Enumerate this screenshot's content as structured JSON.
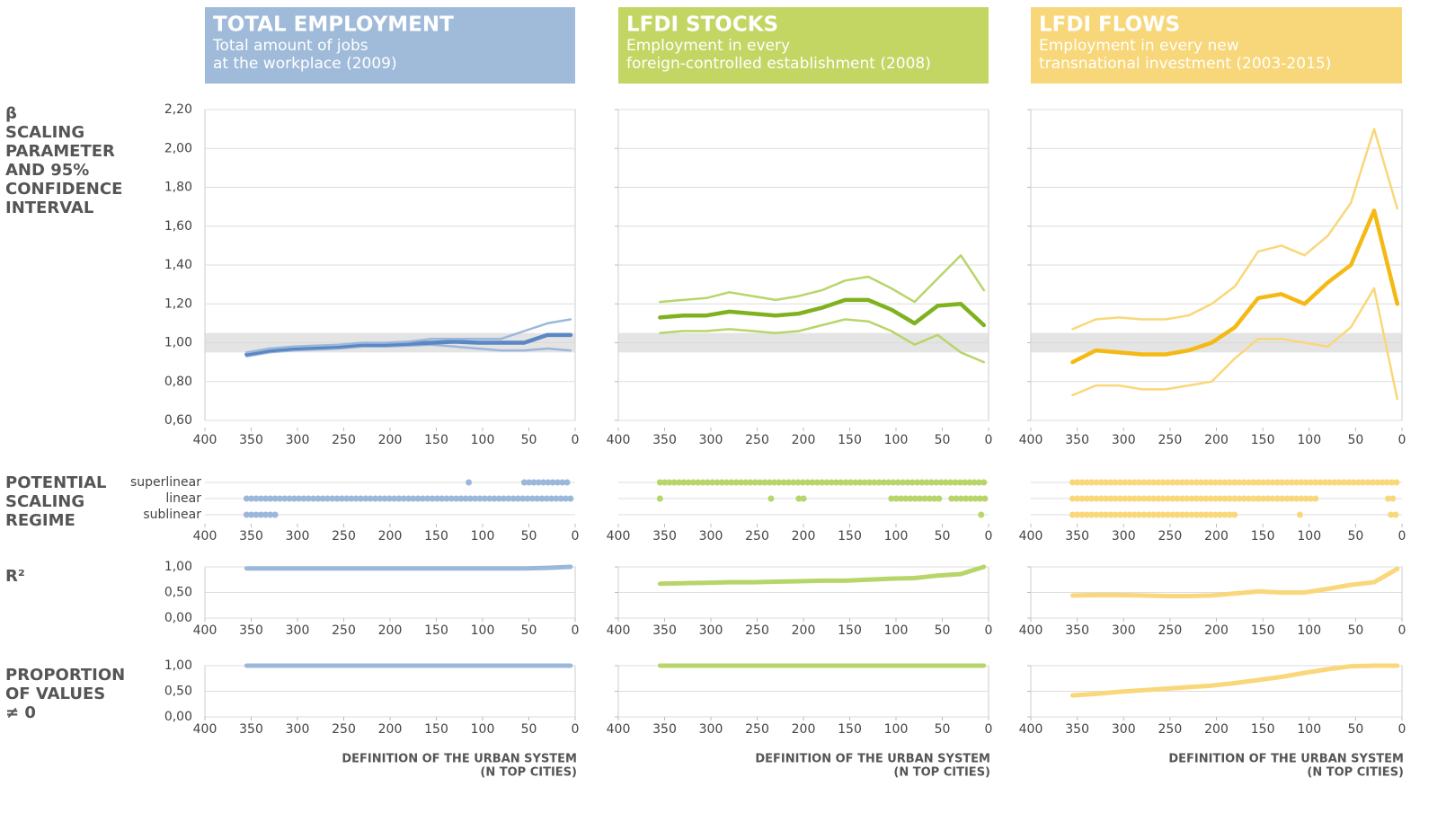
{
  "headers": [
    {
      "title": "TOTAL EMPLOYMENT",
      "subtitle": [
        "Total amount of jobs",
        "at the workplace (2009)"
      ],
      "color": "#9fbbd9",
      "x_title": [
        "DEFINITION OF THE URBAN SYSTEM",
        "(N TOP CITIES)"
      ]
    },
    {
      "title": "LFDI STOCKS",
      "subtitle": [
        "Employment in every",
        "foreign-controlled establishment (2008)"
      ],
      "color": "#c3d664",
      "x_title": [
        "DEFINITION OF THE URBAN SYSTEM",
        "(N TOP CITIES)"
      ]
    },
    {
      "title": "LFDI FLOWS",
      "subtitle": [
        "Employment in every new",
        "transnational investment (2003-2015)"
      ],
      "color": "#f7d77a",
      "x_title": [
        "DEFINITION OF THE URBAN SYSTEM",
        "(N TOP CITIES)"
      ]
    }
  ],
  "row_labels": [
    [
      "β",
      "SCALING",
      "PARAMETER",
      "AND 95%",
      "CONFIDENCE",
      "INTERVAL"
    ],
    [
      "POTENTIAL",
      "SCALING",
      "REGIME"
    ],
    [
      "R²"
    ],
    [
      "PROPORTION",
      "OF VALUES",
      "≠ 0"
    ]
  ],
  "chart_data": [
    {
      "type": "line",
      "x": [
        355,
        330,
        305,
        280,
        255,
        230,
        205,
        180,
        155,
        130,
        105,
        80,
        55,
        30,
        5
      ],
      "xlim": [
        400,
        0
      ],
      "xticks": [
        400,
        350,
        300,
        250,
        200,
        150,
        100,
        50,
        0
      ],
      "ylim": [
        0.6,
        2.2
      ],
      "yticks": [
        {
          "value": 0.6,
          "label": "0,60"
        },
        {
          "value": 0.8,
          "label": "0,80"
        },
        {
          "value": 1.0,
          "label": "1,00"
        },
        {
          "value": 1.2,
          "label": "1,20"
        },
        {
          "value": 1.4,
          "label": "1,40"
        },
        {
          "value": 1.6,
          "label": "1,60"
        },
        {
          "value": 1.8,
          "label": "1,80"
        },
        {
          "value": 2.0,
          "label": "2,00"
        },
        {
          "value": 2.2,
          "label": "2,20"
        }
      ],
      "reference_band": [
        0.95,
        1.05
      ],
      "series": [
        {
          "color": "#9bb8db",
          "values": [
            0.93,
            0.95,
            0.96,
            0.965,
            0.97,
            0.98,
            0.98,
            0.985,
            0.99,
            0.98,
            0.97,
            0.96,
            0.96,
            0.97,
            0.96
          ]
        },
        {
          "color": "#5b87c5",
          "values": [
            0.94,
            0.96,
            0.97,
            0.975,
            0.98,
            0.99,
            0.99,
            0.995,
            1.0,
            1.005,
            1.0,
            1.0,
            1.0,
            1.04,
            1.04
          ]
        },
        {
          "color": "#9bb8db",
          "values": [
            0.95,
            0.97,
            0.98,
            0.985,
            0.99,
            1.0,
            1.0,
            1.005,
            1.02,
            1.02,
            1.02,
            1.02,
            1.06,
            1.1,
            1.12
          ]
        }
      ]
    },
    {
      "type": "dotplot",
      "xlim": [
        400,
        0
      ],
      "xticks": [
        400,
        350,
        300,
        250,
        200,
        150,
        100,
        50,
        0
      ],
      "categories": [
        "superlinear",
        "linear",
        "sublinear"
      ],
      "series": [
        {
          "color": "#9bb8db",
          "ranges": [
            [
              115,
              115
            ],
            [
              55,
              5
            ]
          ]
        },
        {
          "color": "#9bb8db",
          "ranges": [
            [
              355,
              5
            ]
          ]
        },
        {
          "color": "#9bb8db",
          "ranges": [
            [
              355,
              320
            ]
          ]
        }
      ]
    },
    {
      "type": "line",
      "x": [
        355,
        330,
        305,
        280,
        255,
        230,
        205,
        180,
        155,
        130,
        105,
        80,
        55,
        30,
        5
      ],
      "xlim": [
        400,
        0
      ],
      "xticks": [
        400,
        350,
        300,
        250,
        200,
        150,
        100,
        50,
        0
      ],
      "ylim": [
        0,
        1
      ],
      "yticks": [
        {
          "value": 0,
          "label": "0,00"
        },
        {
          "value": 0.5,
          "label": "0,50"
        },
        {
          "value": 1,
          "label": "1,00"
        }
      ],
      "series": [
        {
          "color": "#9bb8db",
          "values": [
            0.97,
            0.97,
            0.97,
            0.97,
            0.97,
            0.97,
            0.97,
            0.97,
            0.97,
            0.97,
            0.97,
            0.97,
            0.97,
            0.98,
            1.0
          ]
        }
      ]
    },
    {
      "type": "line",
      "x": [
        355,
        330,
        305,
        280,
        255,
        230,
        205,
        180,
        155,
        130,
        105,
        80,
        55,
        30,
        5
      ],
      "xlim": [
        400,
        0
      ],
      "xticks": [
        400,
        350,
        300,
        250,
        200,
        150,
        100,
        50,
        0
      ],
      "ylim": [
        0,
        1
      ],
      "yticks": [
        {
          "value": 0,
          "label": "0,00"
        },
        {
          "value": 0.5,
          "label": "0,50"
        },
        {
          "value": 1,
          "label": "1,00"
        }
      ],
      "series": [
        {
          "color": "#9bb8db",
          "values": [
            1,
            1,
            1,
            1,
            1,
            1,
            1,
            1,
            1,
            1,
            1,
            1,
            1,
            1,
            1
          ]
        }
      ]
    },
    {
      "type": "line",
      "x": [
        355,
        330,
        305,
        280,
        255,
        230,
        205,
        180,
        155,
        130,
        105,
        80,
        55,
        30,
        5
      ],
      "xlim": [
        400,
        0
      ],
      "xticks": [
        400,
        350,
        300,
        250,
        200,
        150,
        100,
        50,
        0
      ],
      "ylim": [
        0.6,
        2.2
      ],
      "yticks": [
        0.6,
        0.8,
        1.0,
        1.2,
        1.4,
        1.6,
        1.8,
        2.0,
        2.2
      ],
      "reference_band": [
        0.95,
        1.05
      ],
      "series": [
        {
          "color": "#b8d56a",
          "values": [
            1.05,
            1.06,
            1.06,
            1.07,
            1.06,
            1.05,
            1.06,
            1.09,
            1.12,
            1.11,
            1.06,
            0.99,
            1.04,
            0.95,
            0.9
          ]
        },
        {
          "color": "#7fb21e",
          "values": [
            1.13,
            1.14,
            1.14,
            1.16,
            1.15,
            1.14,
            1.15,
            1.18,
            1.22,
            1.22,
            1.17,
            1.1,
            1.19,
            1.2,
            1.09
          ]
        },
        {
          "color": "#b8d56a",
          "values": [
            1.21,
            1.22,
            1.23,
            1.26,
            1.24,
            1.22,
            1.24,
            1.27,
            1.32,
            1.34,
            1.28,
            1.21,
            1.33,
            1.45,
            1.27
          ]
        }
      ]
    },
    {
      "type": "dotplot",
      "xlim": [
        400,
        0
      ],
      "xticks": [
        400,
        350,
        300,
        250,
        200,
        150,
        100,
        50,
        0
      ],
      "series": [
        {
          "color": "#b8d56a",
          "ranges": [
            [
              355,
              0
            ]
          ]
        },
        {
          "color": "#b8d56a",
          "ranges": [
            [
              355,
              355
            ],
            [
              235,
              235
            ],
            [
              205,
              198
            ],
            [
              105,
              50
            ],
            [
              40,
              0
            ]
          ]
        },
        {
          "color": "#b8d56a",
          "ranges": [
            [
              8,
              3
            ]
          ]
        }
      ]
    },
    {
      "type": "line",
      "x": [
        355,
        330,
        305,
        280,
        255,
        230,
        205,
        180,
        155,
        130,
        105,
        80,
        55,
        30,
        5
      ],
      "xlim": [
        400,
        0
      ],
      "xticks": [
        400,
        350,
        300,
        250,
        200,
        150,
        100,
        50,
        0
      ],
      "ylim": [
        0,
        1
      ],
      "yticks": [
        0,
        0.5,
        1
      ],
      "series": [
        {
          "color": "#b8d56a",
          "values": [
            0.67,
            0.68,
            0.69,
            0.7,
            0.7,
            0.71,
            0.72,
            0.73,
            0.73,
            0.75,
            0.77,
            0.78,
            0.83,
            0.86,
            1.0
          ]
        }
      ]
    },
    {
      "type": "line",
      "x": [
        355,
        330,
        305,
        280,
        255,
        230,
        205,
        180,
        155,
        130,
        105,
        80,
        55,
        30,
        5
      ],
      "xlim": [
        400,
        0
      ],
      "xticks": [
        400,
        350,
        300,
        250,
        200,
        150,
        100,
        50,
        0
      ],
      "ylim": [
        0,
        1
      ],
      "yticks": [
        0,
        0.5,
        1
      ],
      "series": [
        {
          "color": "#b8d56a",
          "values": [
            1,
            1,
            1,
            1,
            1,
            1,
            1,
            1,
            1,
            1,
            1,
            1,
            1,
            1,
            1
          ]
        }
      ]
    },
    {
      "type": "line",
      "x": [
        355,
        330,
        305,
        280,
        255,
        230,
        205,
        180,
        155,
        130,
        105,
        80,
        55,
        30,
        5
      ],
      "xlim": [
        400,
        0
      ],
      "xticks": [
        400,
        350,
        300,
        250,
        200,
        150,
        100,
        50,
        0
      ],
      "ylim": [
        0.6,
        2.2
      ],
      "yticks": [
        0.6,
        0.8,
        1.0,
        1.2,
        1.4,
        1.6,
        1.8,
        2.0,
        2.2
      ],
      "reference_band": [
        0.95,
        1.05
      ],
      "series": [
        {
          "color": "#f9d77a",
          "values": [
            0.73,
            0.78,
            0.78,
            0.76,
            0.76,
            0.78,
            0.8,
            0.92,
            1.02,
            1.02,
            1.0,
            0.98,
            1.08,
            1.28,
            0.71
          ]
        },
        {
          "color": "#f5b915",
          "values": [
            0.9,
            0.96,
            0.95,
            0.94,
            0.94,
            0.96,
            1.0,
            1.08,
            1.23,
            1.25,
            1.2,
            1.31,
            1.4,
            1.68,
            1.2
          ]
        },
        {
          "color": "#f9d77a",
          "values": [
            1.07,
            1.12,
            1.13,
            1.12,
            1.12,
            1.14,
            1.2,
            1.29,
            1.47,
            1.5,
            1.45,
            1.55,
            1.72,
            2.1,
            1.69
          ]
        }
      ]
    },
    {
      "type": "dotplot",
      "xlim": [
        400,
        0
      ],
      "xticks": [
        400,
        350,
        300,
        250,
        200,
        150,
        100,
        50,
        0
      ],
      "series": [
        {
          "color": "#f9d77a",
          "ranges": [
            [
              355,
              5
            ]
          ]
        },
        {
          "color": "#f9d77a",
          "ranges": [
            [
              355,
              90
            ],
            [
              15,
              5
            ]
          ]
        },
        {
          "color": "#f9d77a",
          "ranges": [
            [
              355,
              180
            ],
            [
              110,
              110
            ],
            [
              12,
              5
            ]
          ]
        }
      ]
    },
    {
      "type": "line",
      "x": [
        355,
        330,
        305,
        280,
        255,
        230,
        205,
        180,
        155,
        130,
        105,
        80,
        55,
        30,
        5
      ],
      "xlim": [
        400,
        0
      ],
      "xticks": [
        400,
        350,
        300,
        250,
        200,
        150,
        100,
        50,
        0
      ],
      "ylim": [
        0,
        1
      ],
      "yticks": [
        0,
        0.5,
        1
      ],
      "series": [
        {
          "color": "#f9d77a",
          "values": [
            0.44,
            0.45,
            0.45,
            0.44,
            0.43,
            0.43,
            0.44,
            0.48,
            0.52,
            0.5,
            0.5,
            0.57,
            0.65,
            0.7,
            0.96
          ]
        }
      ]
    },
    {
      "type": "line",
      "x": [
        355,
        330,
        305,
        280,
        255,
        230,
        205,
        180,
        155,
        130,
        105,
        80,
        55,
        30,
        5
      ],
      "xlim": [
        400,
        0
      ],
      "xticks": [
        400,
        350,
        300,
        250,
        200,
        150,
        100,
        50,
        0
      ],
      "ylim": [
        0,
        1
      ],
      "yticks": [
        0,
        0.5,
        1
      ],
      "series": [
        {
          "color": "#f9d77a",
          "values": [
            0.42,
            0.45,
            0.49,
            0.52,
            0.55,
            0.58,
            0.61,
            0.66,
            0.72,
            0.78,
            0.86,
            0.93,
            0.99,
            1.0,
            1.0
          ]
        }
      ]
    }
  ]
}
